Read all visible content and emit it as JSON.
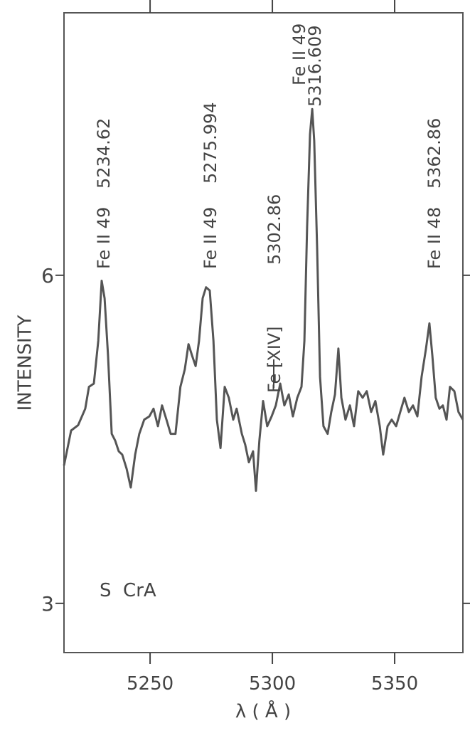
{
  "chart_data": {
    "type": "line",
    "x_label": "λ ( Å )",
    "y_label": "INTENSITY",
    "object_label": "S  CrA",
    "xlim": [
      5214.8,
      5377.9
    ],
    "ylim": [
      2.55,
      8.4
    ],
    "xticks": [
      5250,
      5300,
      5350
    ],
    "yticks": [
      3,
      6
    ],
    "x": [
      5214.8,
      5217.7,
      5220.6,
      5223.5,
      5225.0,
      5227.0,
      5228.8,
      5230.2,
      5231.4,
      5232.8,
      5234.3,
      5235.7,
      5237.2,
      5238.6,
      5240.4,
      5242.1,
      5243.9,
      5245.6,
      5247.6,
      5249.7,
      5251.4,
      5253.2,
      5254.9,
      5256.7,
      5258.4,
      5260.4,
      5262.4,
      5264.2,
      5265.7,
      5267.1,
      5268.6,
      5270.0,
      5271.5,
      5272.9,
      5274.4,
      5275.9,
      5277.3,
      5278.8,
      5280.5,
      5282.2,
      5284.0,
      5285.4,
      5287.5,
      5288.9,
      5290.4,
      5292.1,
      5293.3,
      5294.7,
      5296.2,
      5297.9,
      5299.7,
      5301.4,
      5303.2,
      5304.9,
      5306.7,
      5308.4,
      5310.2,
      5311.9,
      5313.1,
      5314.2,
      5315.4,
      5316.3,
      5317.1,
      5318.3,
      5319.5,
      5320.9,
      5322.6,
      5324.1,
      5325.6,
      5327.0,
      5328.2,
      5329.9,
      5331.7,
      5333.4,
      5335.1,
      5336.9,
      5338.6,
      5340.4,
      5342.1,
      5343.9,
      5345.3,
      5347.1,
      5348.8,
      5350.6,
      5352.3,
      5354.0,
      5355.8,
      5357.5,
      5359.3,
      5361.0,
      5362.8,
      5364.2,
      5365.4,
      5366.8,
      5368.3,
      5369.7,
      5371.2,
      5372.6,
      5374.4,
      5376.1,
      5377.9
    ],
    "series": [
      {
        "color": "#555555",
        "values": [
          4.26,
          4.58,
          4.63,
          4.78,
          4.98,
          5.01,
          5.4,
          5.95,
          5.79,
          5.27,
          4.55,
          4.49,
          4.39,
          4.36,
          4.23,
          4.06,
          4.36,
          4.55,
          4.68,
          4.71,
          4.78,
          4.62,
          4.81,
          4.68,
          4.55,
          4.55,
          4.98,
          5.14,
          5.37,
          5.27,
          5.17,
          5.4,
          5.79,
          5.89,
          5.86,
          5.4,
          4.68,
          4.42,
          4.98,
          4.88,
          4.68,
          4.78,
          4.55,
          4.45,
          4.29,
          4.39,
          4.03,
          4.49,
          4.85,
          4.62,
          4.71,
          4.81,
          5.01,
          4.81,
          4.91,
          4.71,
          4.88,
          4.98,
          5.4,
          6.44,
          7.29,
          7.52,
          7.23,
          6.25,
          5.07,
          4.62,
          4.55,
          4.75,
          4.91,
          5.33,
          4.88,
          4.68,
          4.81,
          4.62,
          4.94,
          4.88,
          4.94,
          4.75,
          4.85,
          4.62,
          4.36,
          4.62,
          4.68,
          4.62,
          4.75,
          4.88,
          4.75,
          4.81,
          4.71,
          5.07,
          5.33,
          5.56,
          5.27,
          4.88,
          4.78,
          4.81,
          4.68,
          4.98,
          4.94,
          4.75,
          4.68
        ]
      }
    ],
    "annotations": [
      [
        "Fe II 49",
        "5234.62"
      ],
      [
        "Fe II 49",
        "5275.994"
      ],
      [
        "Fe [XIV]",
        "5302.86"
      ],
      [
        "Fe II 49",
        "5316.609"
      ],
      [
        "Fe II 48",
        "5362.86"
      ]
    ]
  }
}
